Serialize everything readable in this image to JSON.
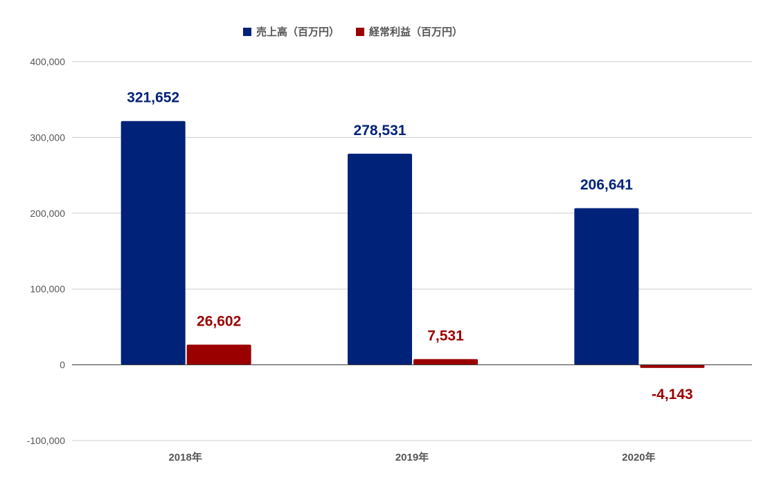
{
  "chart_data": {
    "type": "bar",
    "categories": [
      "2018年",
      "2019年",
      "2020年"
    ],
    "series": [
      {
        "name": "売上高（百万円）",
        "values": [
          321652,
          278531,
          206641
        ],
        "labels": [
          "321,652",
          "278,531",
          "206,641"
        ],
        "color": "#002279"
      },
      {
        "name": "経常利益（百万円）",
        "values": [
          26602,
          7531,
          -4143
        ],
        "labels": [
          "26,602",
          "7,531",
          "-4,143"
        ],
        "color": "#9b0000"
      }
    ],
    "ylim": [
      -100000,
      400000
    ],
    "yticks": [
      400000,
      300000,
      200000,
      100000,
      0,
      -100000
    ],
    "ytick_labels": [
      "400,000",
      "300,000",
      "200,000",
      "100,000",
      "0",
      "-100,000"
    ],
    "grid": true,
    "legend_position": "top",
    "title": "",
    "xlabel": "",
    "ylabel": ""
  }
}
